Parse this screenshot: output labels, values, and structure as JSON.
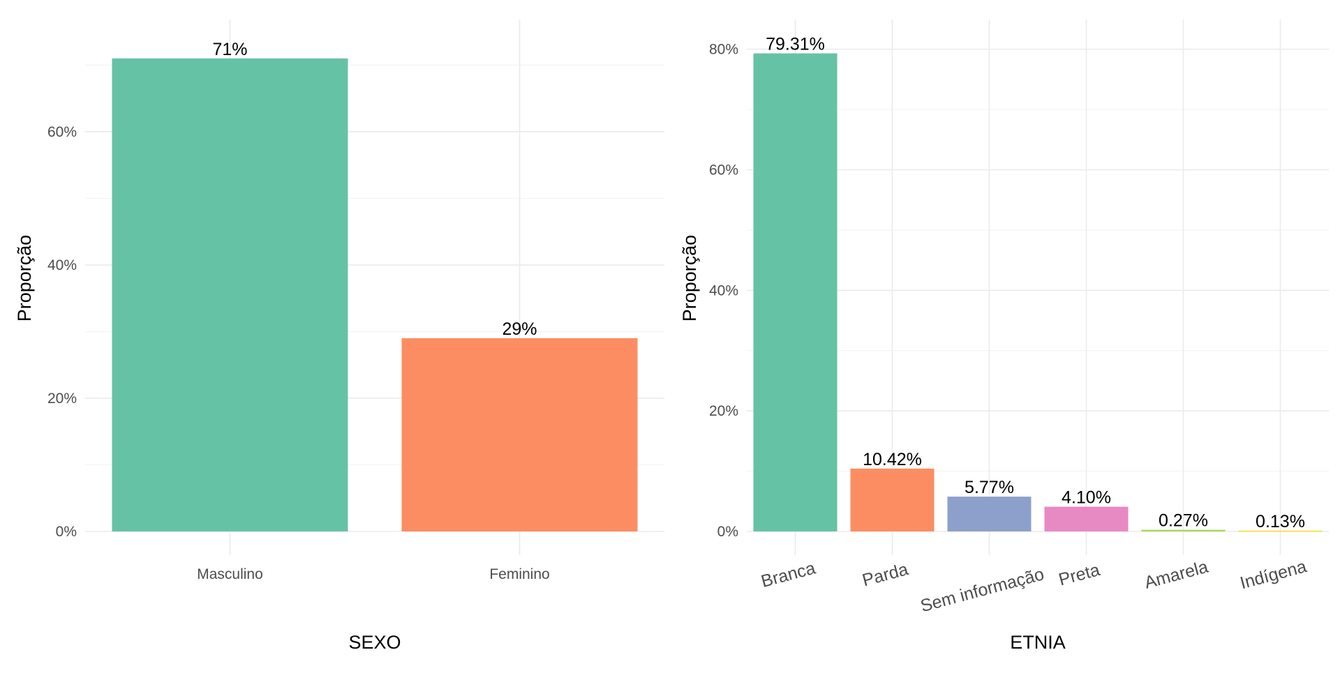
{
  "chart_data": [
    {
      "type": "bar",
      "xlabel": "SEXO",
      "ylabel": "Proporção",
      "ylim": [
        0,
        0.76
      ],
      "yticks": [
        0,
        0.2,
        0.4,
        0.6
      ],
      "ytick_labels": [
        "0%",
        "20%",
        "40%",
        "60%"
      ],
      "categories": [
        "Masculino",
        "Feminino"
      ],
      "values": [
        0.71,
        0.29
      ],
      "value_labels": [
        "71%",
        "29%"
      ],
      "colors": [
        "#66c2a5",
        "#fc8d62"
      ],
      "tick_label_rotation": 0,
      "grid": true,
      "legend": "none"
    },
    {
      "type": "bar",
      "xlabel": "ETNIA",
      "ylabel": "Proporção",
      "ylim": [
        0,
        0.84
      ],
      "yticks": [
        0,
        0.2,
        0.4,
        0.6,
        0.8
      ],
      "ytick_labels": [
        "0%",
        "20%",
        "40%",
        "60%",
        "80%"
      ],
      "categories": [
        "Branca",
        "Parda",
        "Sem informação",
        "Preta",
        "Amarela",
        "Indígena"
      ],
      "values": [
        0.7931,
        0.1042,
        0.0577,
        0.041,
        0.0027,
        0.0013
      ],
      "value_labels": [
        "79.31%",
        "10.42%",
        "5.77%",
        "4.10%",
        "0.27%",
        "0.13%"
      ],
      "colors": [
        "#66c2a5",
        "#fc8d62",
        "#8da0cb",
        "#e78ac3",
        "#a6d854",
        "#ffd92f"
      ],
      "tick_label_rotation": -15,
      "grid": true,
      "legend": "none"
    }
  ]
}
